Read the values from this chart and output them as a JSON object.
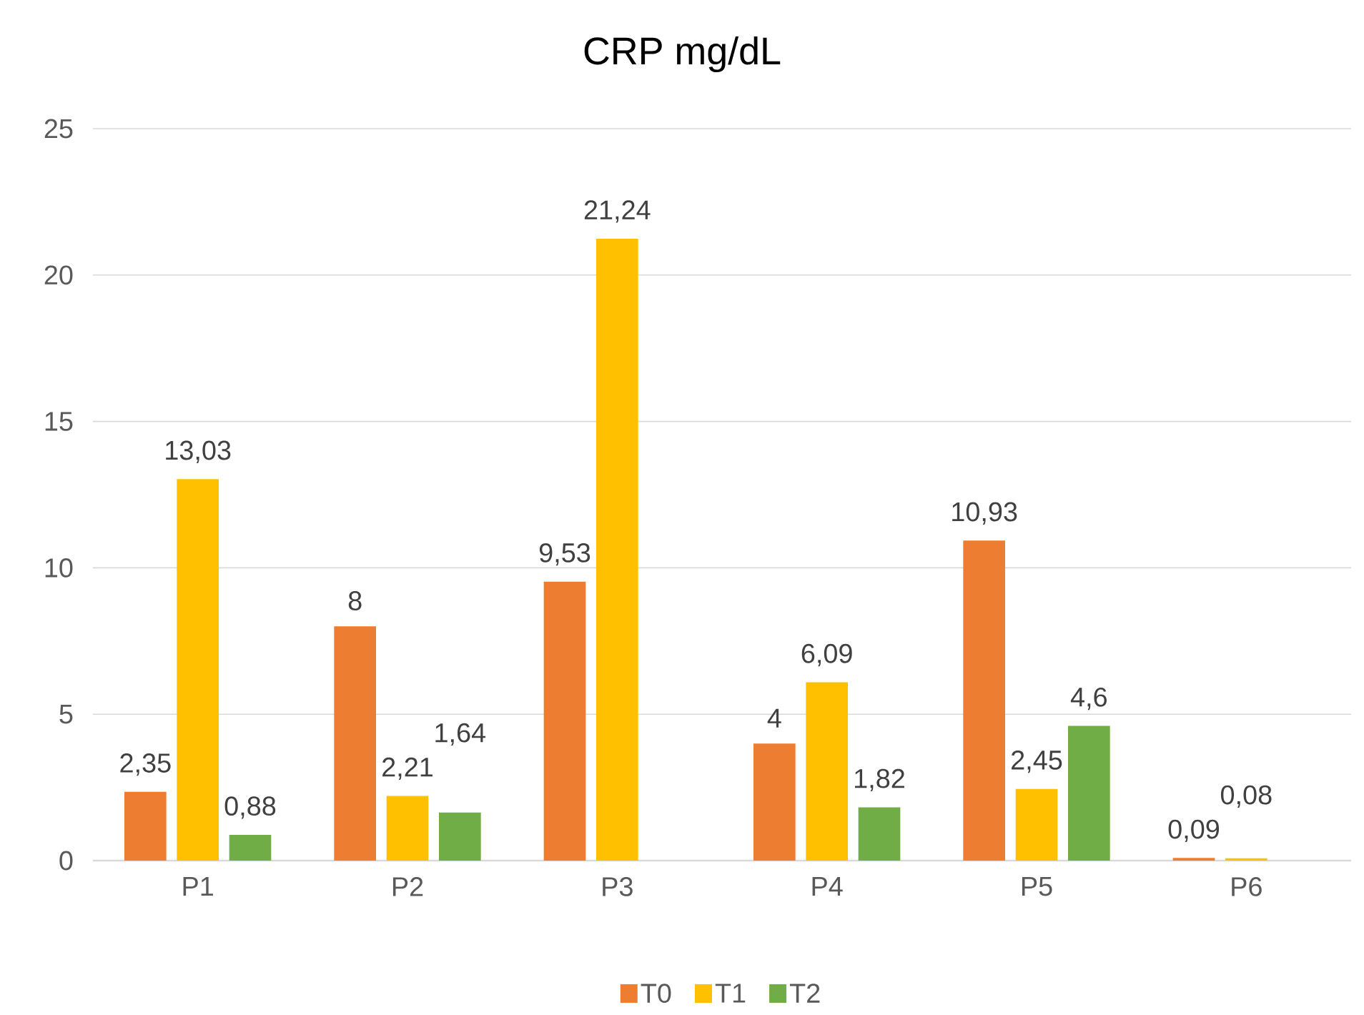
{
  "chart_data": {
    "type": "bar",
    "title": "CRP mg/dL",
    "categories": [
      "P1",
      "P2",
      "P3",
      "P4",
      "P5",
      "P6"
    ],
    "series": [
      {
        "name": "T0",
        "color": "#ed7d31",
        "values": [
          2.35,
          8,
          9.53,
          4,
          10.93,
          0.09
        ],
        "value_labels": [
          "2,35",
          "8",
          "9,53",
          "4",
          "10,93",
          "0,09"
        ]
      },
      {
        "name": "T1",
        "color": "#ffc000",
        "values": [
          13.03,
          2.21,
          21.24,
          6.09,
          2.45,
          0.08
        ],
        "value_labels": [
          "13,03",
          "2,21",
          "21,24",
          "6,09",
          "2,45",
          "0,08"
        ]
      },
      {
        "name": "T2",
        "color": "#70ad47",
        "values": [
          0.88,
          1.64,
          null,
          1.82,
          4.6,
          null
        ],
        "value_labels": [
          "0,88",
          "1,64",
          null,
          "1,82",
          "4,6",
          null
        ]
      }
    ],
    "ylim": [
      0,
      25
    ],
    "yticks": [
      0,
      5,
      10,
      15,
      20,
      25
    ],
    "grid": "y",
    "legend": "bottom"
  }
}
